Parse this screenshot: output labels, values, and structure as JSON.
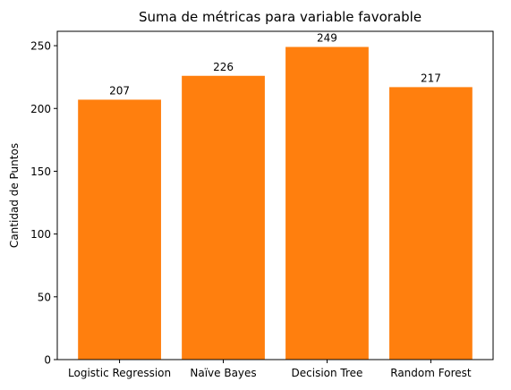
{
  "chart_data": {
    "type": "bar",
    "title": "Suma de métricas para variable favorable",
    "xlabel": "",
    "ylabel": "Cantidad de Puntos",
    "categories": [
      "Logistic Regression",
      "Naïve Bayes",
      "Decision Tree",
      "Random Forest"
    ],
    "values": [
      207,
      226,
      249,
      217
    ],
    "data_labels": [
      "207",
      "226",
      "249",
      "217"
    ],
    "ylim": [
      0,
      261.45
    ],
    "yticks": [
      0,
      50,
      100,
      150,
      200,
      250
    ],
    "ytick_labels": [
      "0",
      "50",
      "100",
      "150",
      "200",
      "250"
    ],
    "bar_color": "#ff7f0e",
    "grid": false,
    "legend": false
  }
}
